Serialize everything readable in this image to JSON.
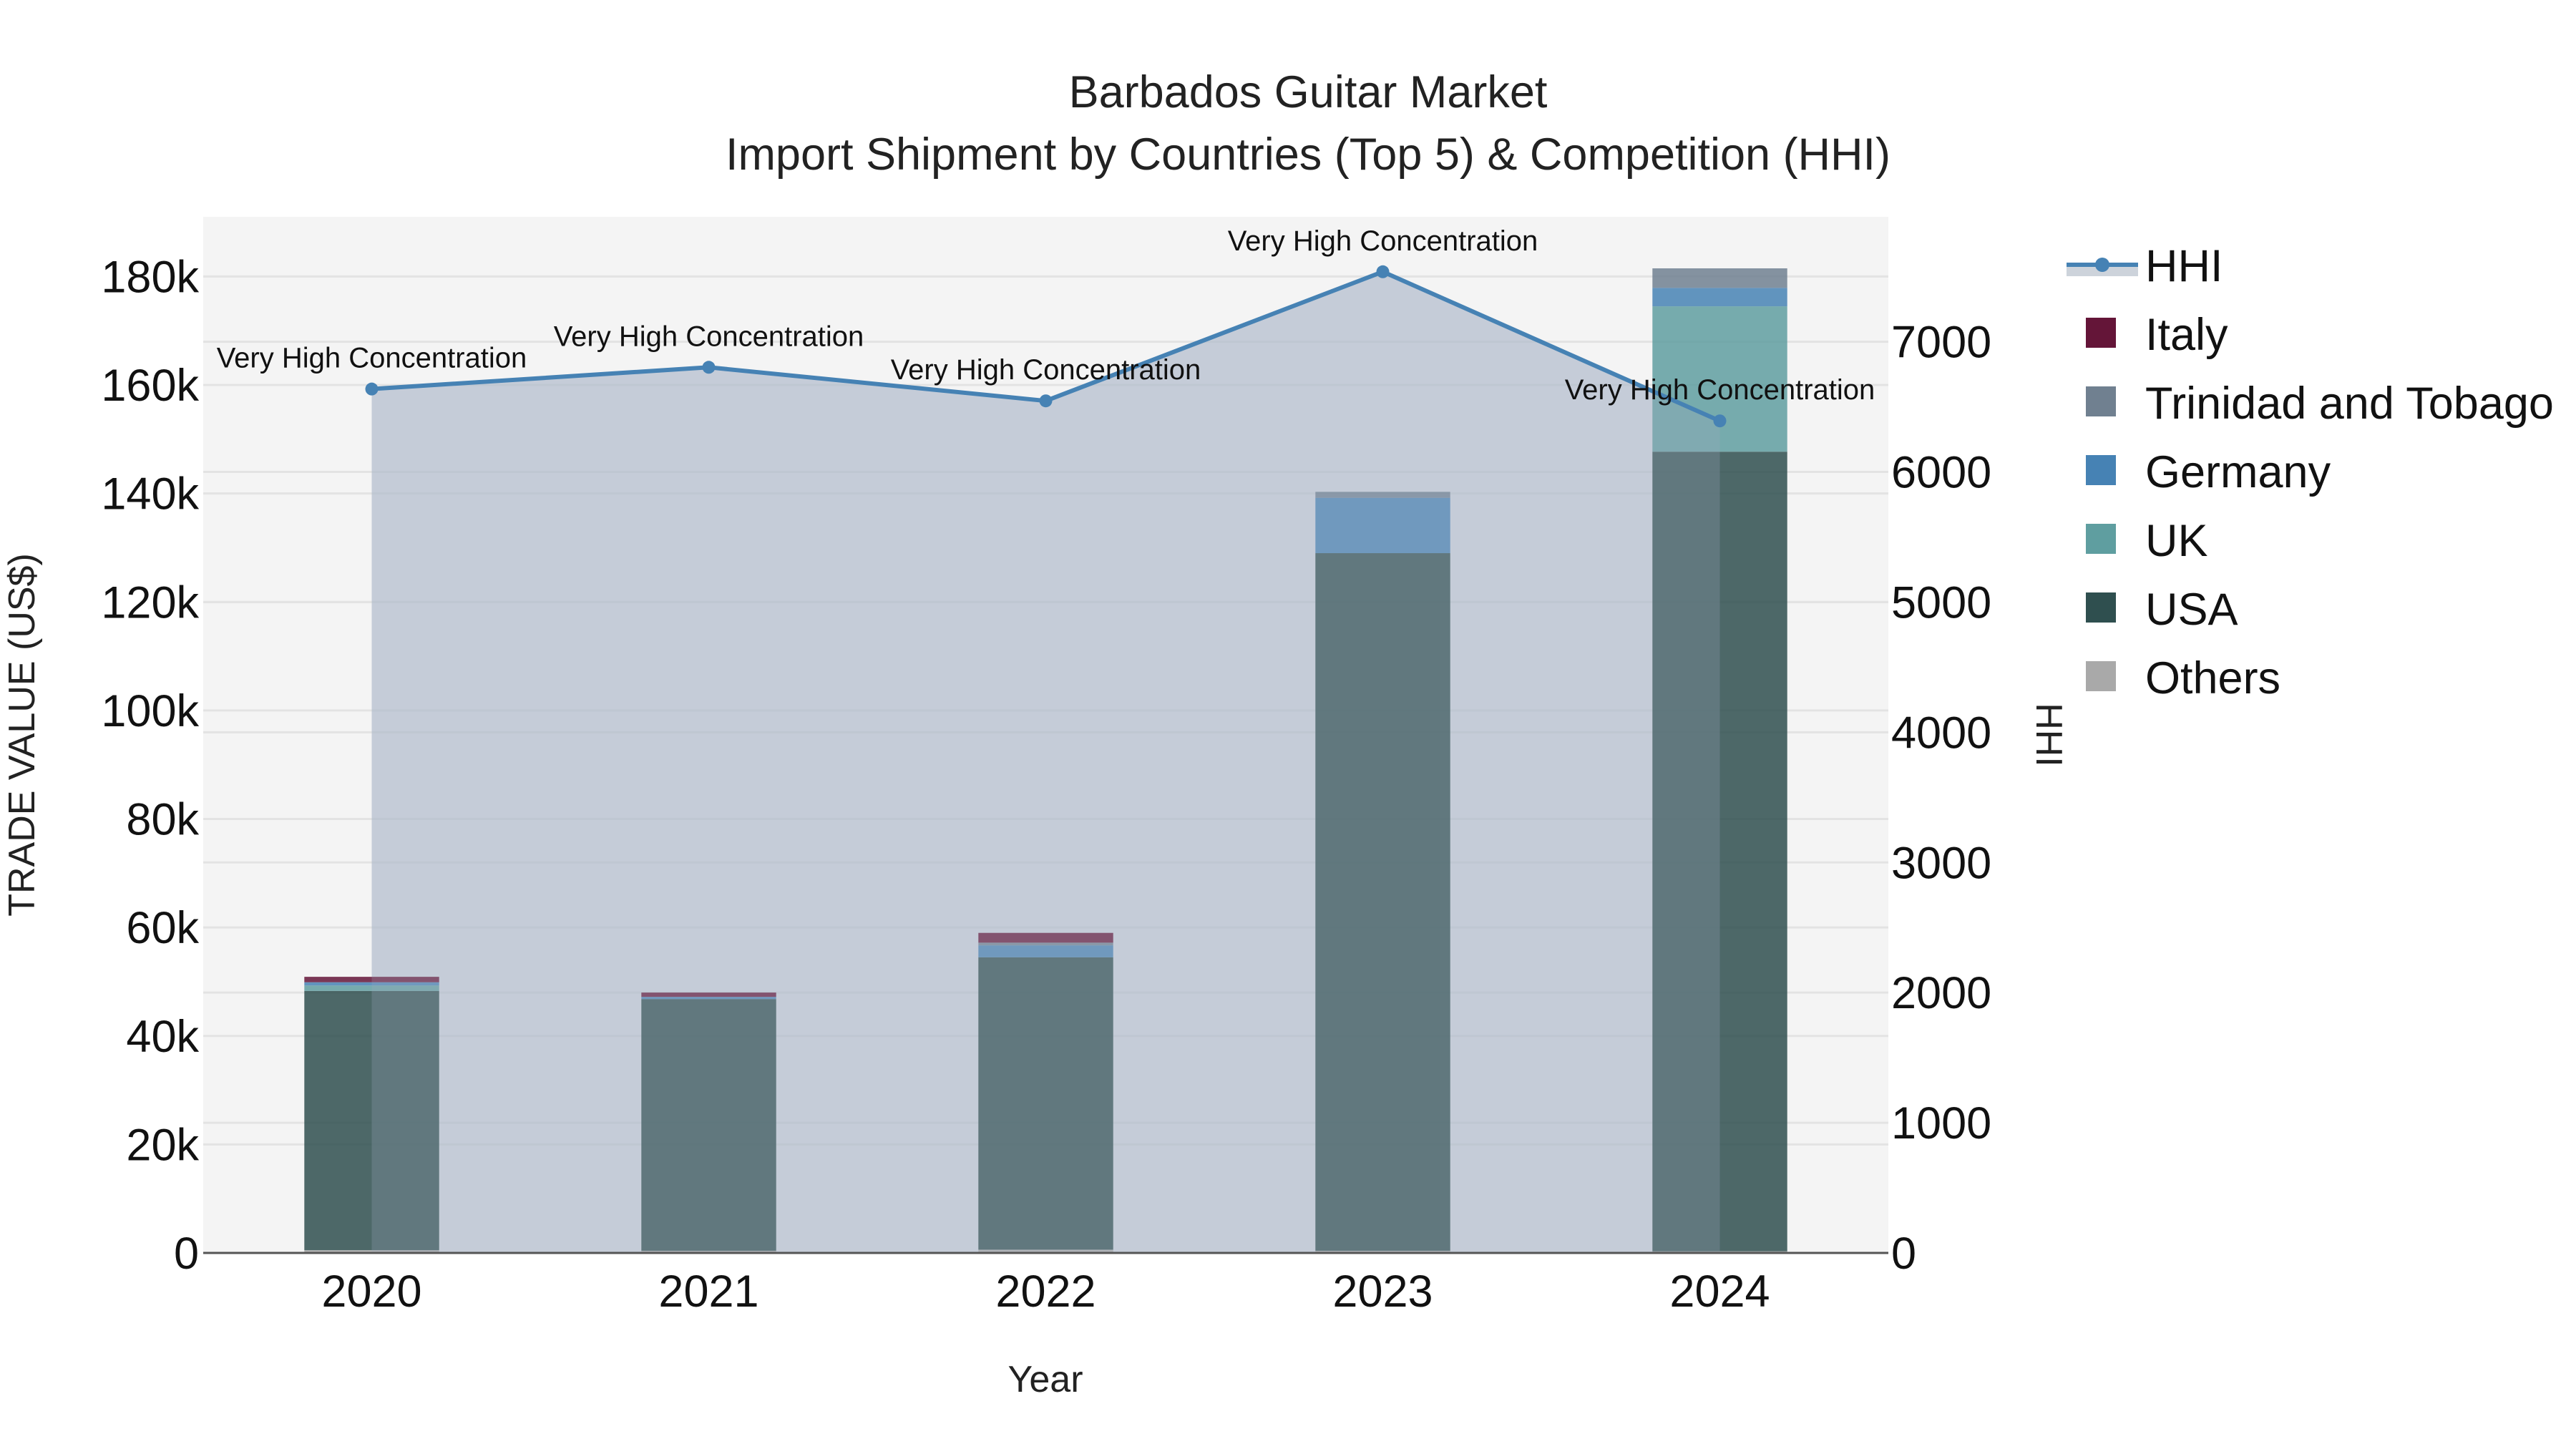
{
  "title": {
    "line1": "Barbados Guitar Market",
    "line2": "Import Shipment by Countries (Top 5) & Competition (HHI)"
  },
  "axes": {
    "x_title": "Year",
    "y_left_title": "TRADE VALUE (US$)",
    "y_right_title": "HHI",
    "y_left_ticks": [
      "0",
      "20k",
      "40k",
      "60k",
      "80k",
      "100k",
      "120k",
      "140k",
      "160k",
      "180k"
    ],
    "y_right_ticks": [
      "0",
      "1000",
      "2000",
      "3000",
      "4000",
      "5000",
      "6000",
      "7000"
    ]
  },
  "legend": [
    {
      "name": "HHI",
      "type": "line",
      "color": "#4682B4"
    },
    {
      "name": "Italy",
      "type": "bar",
      "color": "#641538"
    },
    {
      "name": "Trinidad and Tobago",
      "type": "bar",
      "color": "#708090"
    },
    {
      "name": "Germany",
      "type": "bar",
      "color": "#4682B4"
    },
    {
      "name": "UK",
      "type": "bar",
      "color": "#5F9EA0"
    },
    {
      "name": "USA",
      "type": "bar",
      "color": "#2F4F4F"
    },
    {
      "name": "Others",
      "type": "bar",
      "color": "#A9A9A9"
    }
  ],
  "colors": {
    "plot_bg": "#F4F4F4",
    "grid": "#E3E3E3",
    "hhi_line": "#4682B4",
    "hhi_fill": "rgba(176,186,204,0.6)",
    "axis_line": "#555555"
  },
  "annotation_label": "Very High Concentration",
  "chart_data": {
    "type": "bar",
    "stacked": true,
    "title": "Barbados Guitar Market — Import Shipment by Countries (Top 5) & Competition (HHI)",
    "xlabel": "Year",
    "ylabel": "TRADE VALUE (US$)",
    "y2label": "HHI",
    "categories": [
      "2020",
      "2021",
      "2022",
      "2023",
      "2024"
    ],
    "ylim": [
      0,
      191000
    ],
    "y2lim": [
      0,
      7960
    ],
    "grid": true,
    "legend_position": "right",
    "series": [
      {
        "name": "Others",
        "values": [
          500,
          400,
          600,
          400,
          300
        ],
        "color": "#A9A9A9"
      },
      {
        "name": "USA",
        "values": [
          47800,
          46400,
          53900,
          128600,
          147400
        ],
        "color": "#2F4F4F"
      },
      {
        "name": "UK",
        "values": [
          1000,
          0,
          0,
          0,
          26800
        ],
        "color": "#5F9EA0"
      },
      {
        "name": "Germany",
        "values": [
          600,
          400,
          2200,
          10200,
          3400
        ],
        "color": "#4682B4"
      },
      {
        "name": "Trinidad and Tobago",
        "values": [
          0,
          0,
          500,
          1100,
          3600
        ],
        "color": "#708090"
      },
      {
        "name": "Italy",
        "values": [
          1000,
          800,
          1800,
          0,
          0
        ],
        "color": "#641538"
      }
    ],
    "line_series": {
      "name": "HHI",
      "axis": "right",
      "values": [
        6637,
        6804,
        6546,
        7538,
        6392
      ],
      "labels": [
        "Very High Concentration",
        "Very High Concentration",
        "Very High Concentration",
        "Very High Concentration",
        "Very High Concentration"
      ]
    }
  }
}
